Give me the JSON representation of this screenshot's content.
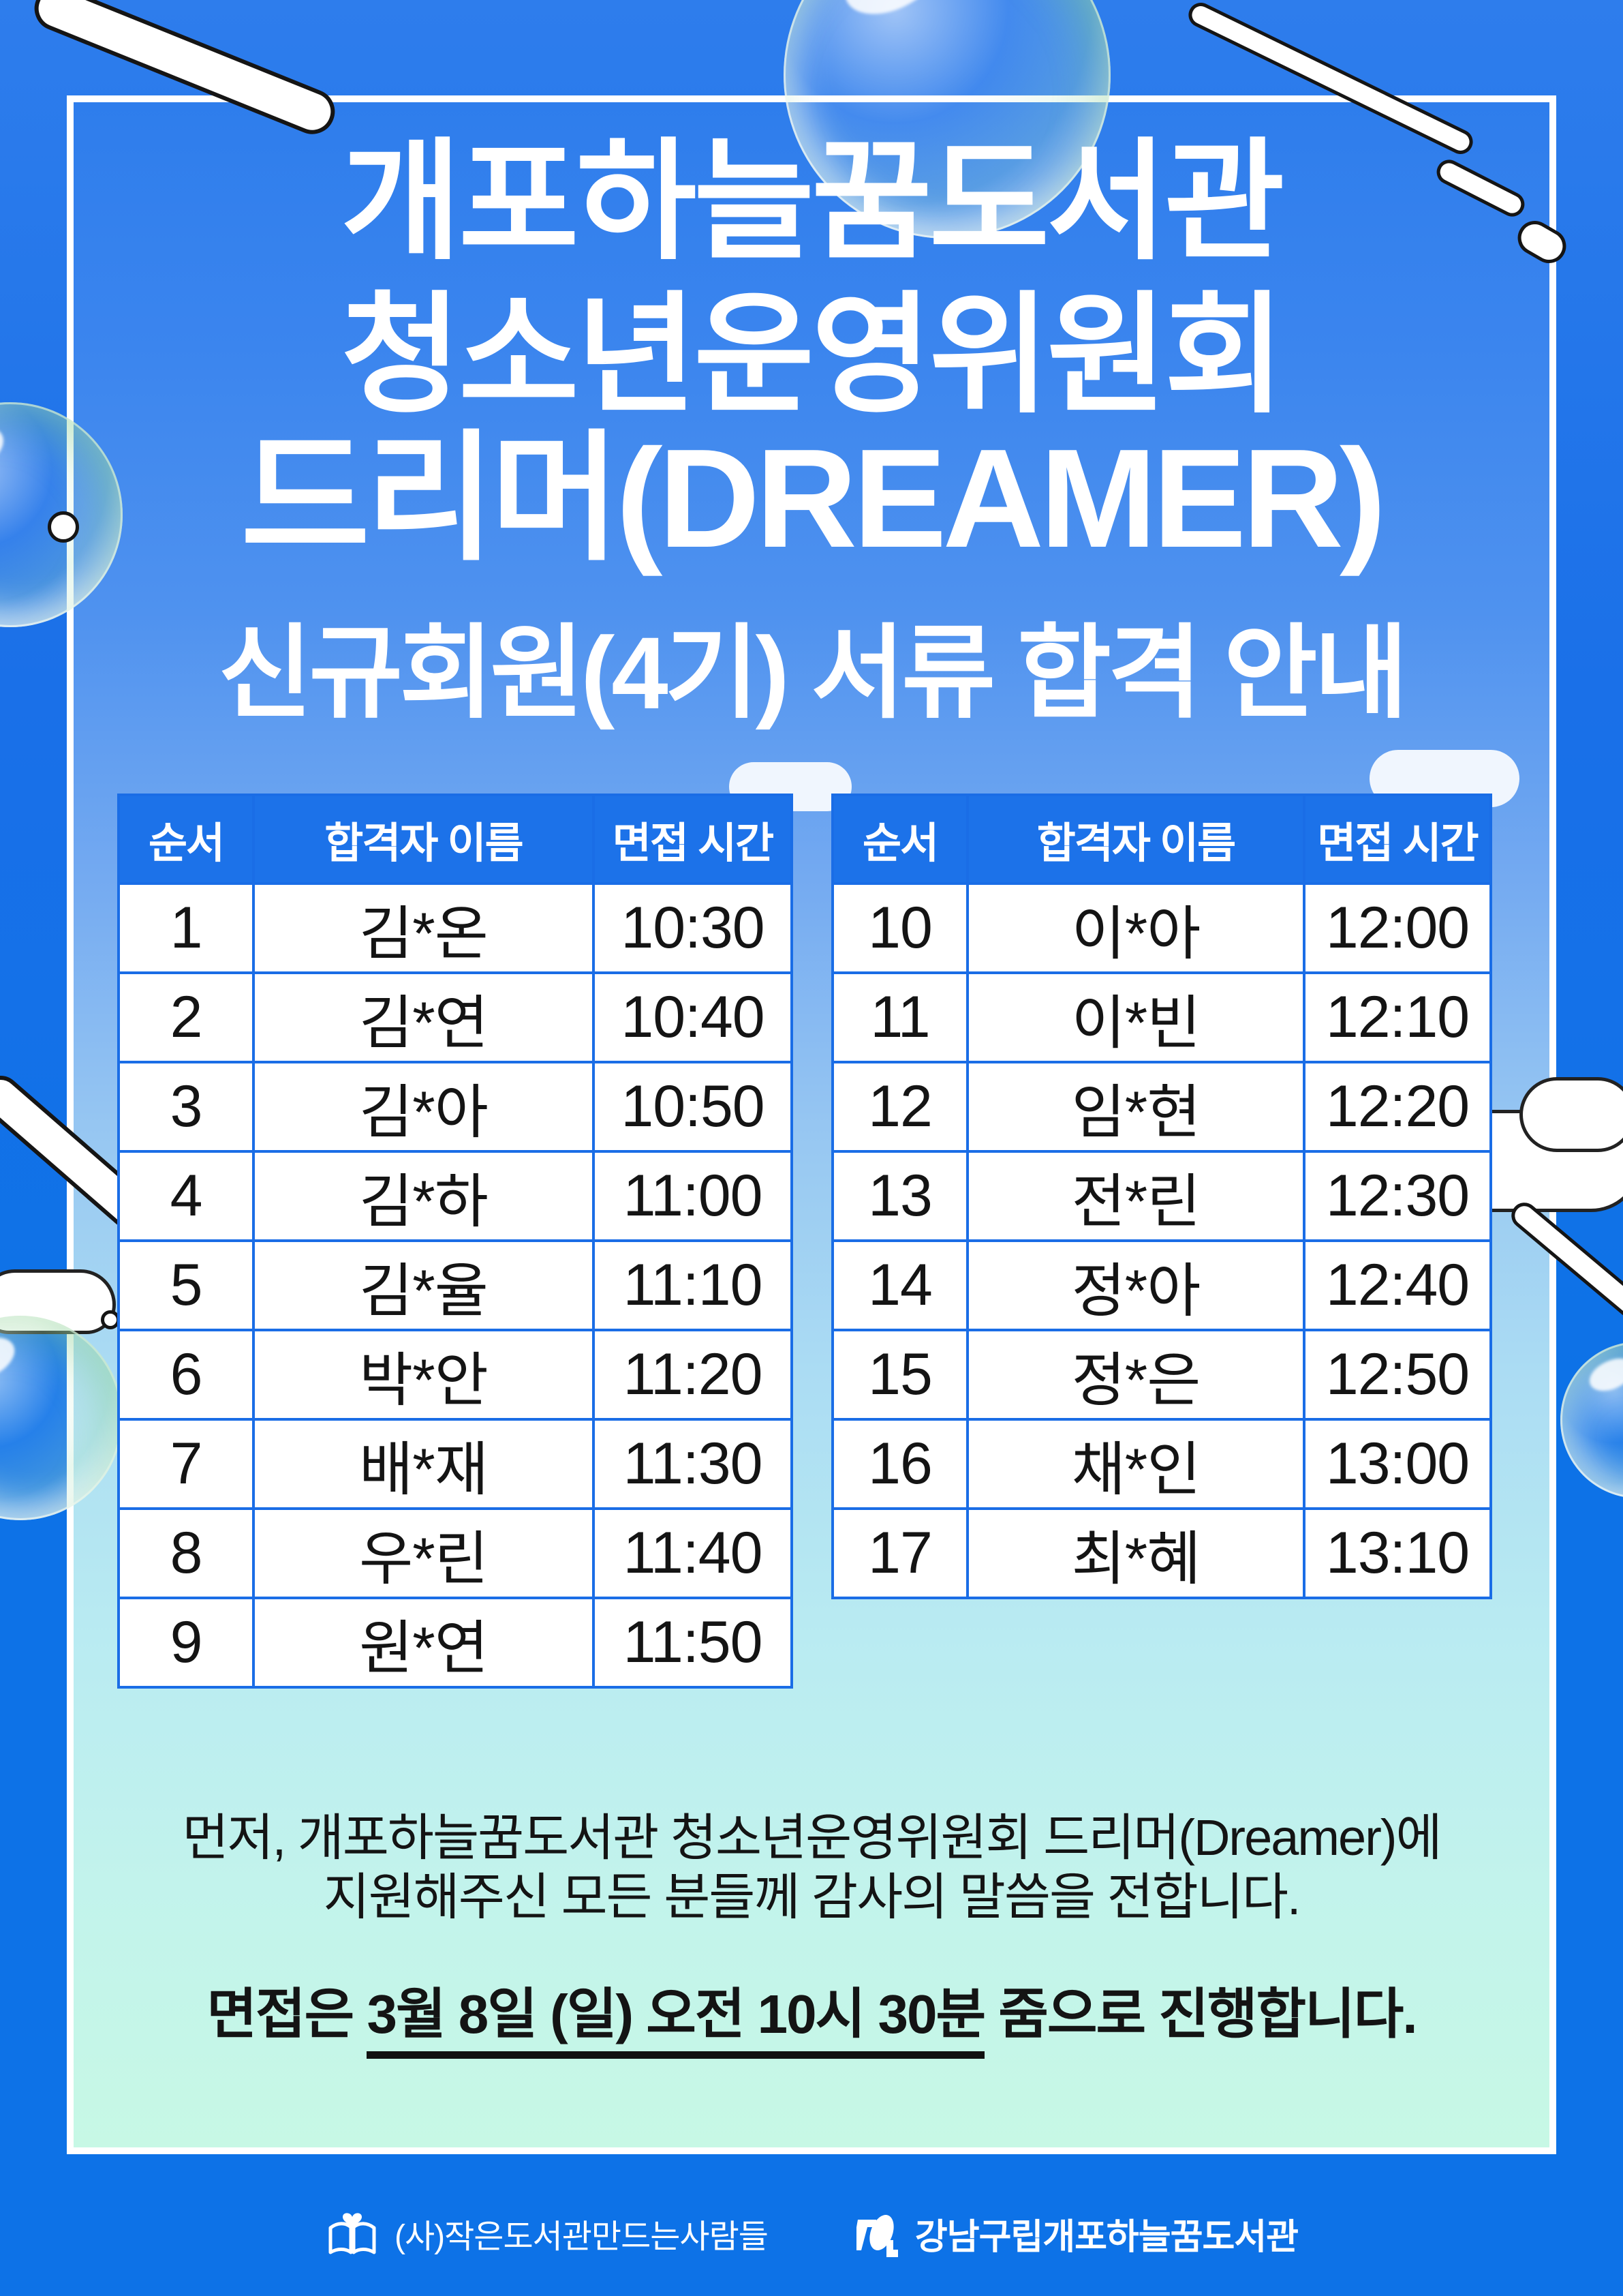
{
  "header": {
    "title_line1": "개포하늘꿈도서관",
    "title_line2": "청소년운영위원회",
    "title_line3": "드리머(DREAMER)",
    "subtitle": "신규회원(4기) 서류 합격 안내"
  },
  "tables": {
    "headers": [
      "순서",
      "합격자 이름",
      "면접 시간"
    ],
    "left_rows": [
      {
        "no": "1",
        "name": "김*온",
        "time": "10:30"
      },
      {
        "no": "2",
        "name": "김*연",
        "time": "10:40"
      },
      {
        "no": "3",
        "name": "김*아",
        "time": "10:50"
      },
      {
        "no": "4",
        "name": "김*하",
        "time": "11:00"
      },
      {
        "no": "5",
        "name": "김*율",
        "time": "11:10"
      },
      {
        "no": "6",
        "name": "박*안",
        "time": "11:20"
      },
      {
        "no": "7",
        "name": "배*재",
        "time": "11:30"
      },
      {
        "no": "8",
        "name": "우*린",
        "time": "11:40"
      },
      {
        "no": "9",
        "name": "원*연",
        "time": "11:50"
      }
    ],
    "right_rows": [
      {
        "no": "10",
        "name": "이*아",
        "time": "12:00"
      },
      {
        "no": "11",
        "name": "이*빈",
        "time": "12:10"
      },
      {
        "no": "12",
        "name": "임*현",
        "time": "12:20"
      },
      {
        "no": "13",
        "name": "전*린",
        "time": "12:30"
      },
      {
        "no": "14",
        "name": "정*아",
        "time": "12:40"
      },
      {
        "no": "15",
        "name": "정*은",
        "time": "12:50"
      },
      {
        "no": "16",
        "name": "채*인",
        "time": "13:00"
      },
      {
        "no": "17",
        "name": "최*혜",
        "time": "13:10"
      }
    ]
  },
  "message": {
    "line1": "먼저, 개포하늘꿈도서관 청소년운영위원회 드리머(Dreamer)에",
    "line2": "지원해주신 모든 분들께 감사의 말씀을 전합니다.",
    "interview_prefix": "면접은 ",
    "interview_emphasis": "3월 8일 (일) 오전 10시 30분",
    "interview_suffix": " 줌으로 진행합니다."
  },
  "footer": {
    "left_icon": "book-heart-icon",
    "left_org": "(사)작은도서관만드는사람들",
    "right_icon": "gangnam-library-logo-icon",
    "right_org": "강남구립개포하늘꿈도서관"
  },
  "colors": {
    "outer_blue": "#0d72e7",
    "gradient_top_blue": "#2e7dec",
    "gradient_bottom_mint": "#c7f8e5",
    "table_header_blue": "#1c72e9",
    "table_border_blue": "#1a6de6",
    "text_dark": "#141414",
    "text_white": "#ffffff"
  }
}
